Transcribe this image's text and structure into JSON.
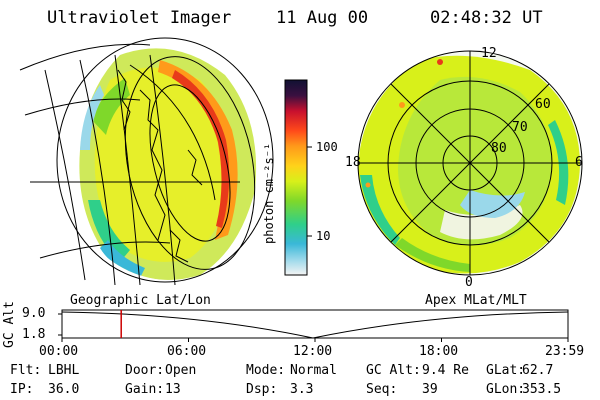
{
  "header": {
    "instrument": "Ultraviolet Imager",
    "date": "11 Aug 00",
    "time": "02:48:32 UT"
  },
  "colorbar": {
    "unit": "photon cm⁻²s⁻¹",
    "ticks": [
      "100",
      "10"
    ],
    "colors": [
      "#111133",
      "#3a1040",
      "#c8102e",
      "#ff4a1a",
      "#ff9a1a",
      "#ffd21a",
      "#d8f01a",
      "#7fd82a",
      "#2fcf8a",
      "#3ab8d8",
      "#9ad8ea",
      "#f4f4f4"
    ]
  },
  "left_view": {
    "label": "Geographic Lat/Lon"
  },
  "right_view": {
    "label": "Apex MLat/MLT",
    "mlt_labels": {
      "top": "12",
      "left": "18",
      "right": "6",
      "bottom": "0"
    },
    "mlat_labels": [
      "60",
      "70",
      "80"
    ]
  },
  "altitude_plot": {
    "axis_title": "GC Alt",
    "y_ticks": [
      "9.0",
      "1.8"
    ],
    "x_ticks": [
      "00:00",
      "06:00",
      "12:00",
      "18:00",
      "23:59"
    ],
    "current_time_fraction": 0.117,
    "marker_color": "#cc0000"
  },
  "status": {
    "row1": [
      {
        "key": "Flt:",
        "value": "LBHL"
      },
      {
        "key": "Door:",
        "value": "Open"
      },
      {
        "key": "Mode:",
        "value": "Normal"
      },
      {
        "key": "GC Alt:",
        "value": "9.4 Re"
      },
      {
        "key": "GLat:",
        "value": "62.7"
      }
    ],
    "row2": [
      {
        "key": "IP:",
        "value": "36.0"
      },
      {
        "key": "Gain:",
        "value": "13"
      },
      {
        "key": "Dsp:",
        "value": "3.3"
      },
      {
        "key": "Seq:",
        "value": "39"
      },
      {
        "key": "GLon:",
        "value": "353.5"
      }
    ]
  }
}
